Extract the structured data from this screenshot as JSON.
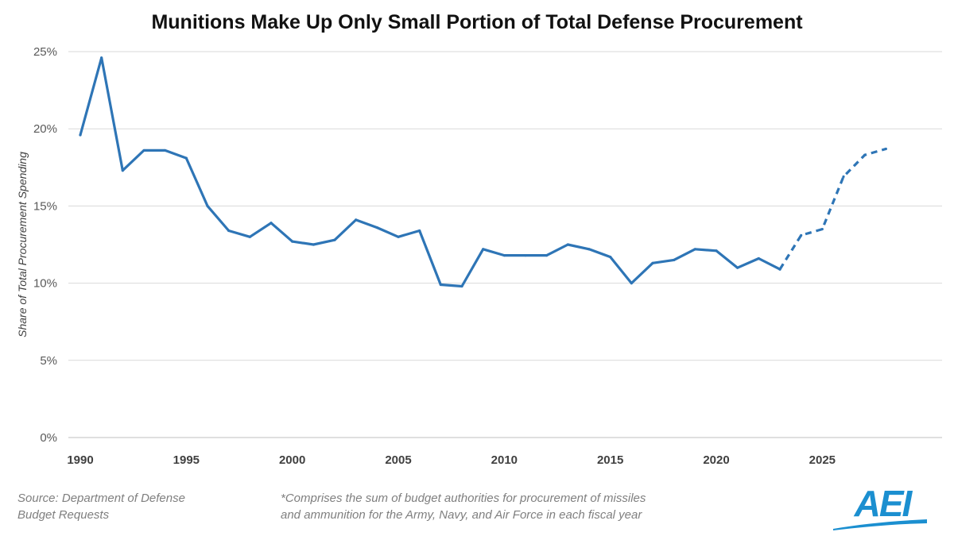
{
  "title": "Munitions Make Up Only Small Portion of Total Defense Procurement",
  "source_line1": "Source: Department of Defense",
  "source_line2": "Budget Requests",
  "footnote_line1": "*Comprises the sum of budget authorities for procurement of missiles",
  "footnote_line2": "and ammunition for the Army, Navy, and Air Force in each fiscal year",
  "logo_text": "AEI",
  "colors": {
    "line": "#2E75B6",
    "grid": "#D9D9D9",
    "logo": "#1B8FD0"
  },
  "chart_data": {
    "type": "line",
    "title": "Munitions Make Up Only Small Portion of Total Defense Procurement",
    "xlabel": "",
    "ylabel": "Share of Total Procurement Spending",
    "xlim": [
      1990,
      2029
    ],
    "ylim": [
      0,
      25
    ],
    "x_ticks": [
      1990,
      1995,
      2000,
      2005,
      2010,
      2015,
      2020,
      2025
    ],
    "y_ticks": [
      0,
      5,
      10,
      15,
      20,
      25
    ],
    "y_tick_labels": [
      "0%",
      "5%",
      "10%",
      "15%",
      "20%",
      "25%"
    ],
    "grid": "horizontal",
    "legend": "none",
    "series": [
      {
        "style": "solid",
        "x": [
          1990,
          1991,
          1992,
          1993,
          1994,
          1995,
          1996,
          1997,
          1998,
          1999,
          2000,
          2001,
          2002,
          2003,
          2004,
          2005,
          2006,
          2007,
          2008,
          2009,
          2010,
          2011,
          2012,
          2013,
          2014,
          2015,
          2016,
          2017,
          2018,
          2019,
          2020,
          2021,
          2022,
          2023
        ],
        "values": [
          19.6,
          24.6,
          17.3,
          18.6,
          18.6,
          18.1,
          15.0,
          13.4,
          13.0,
          13.9,
          12.7,
          12.5,
          12.8,
          14.1,
          13.6,
          13.0,
          13.4,
          9.9,
          9.8,
          12.2,
          11.8,
          11.8,
          11.8,
          12.5,
          12.2,
          11.7,
          10.0,
          11.3,
          11.5,
          12.2,
          12.1,
          11.0,
          11.6,
          10.9
        ]
      },
      {
        "style": "dashed",
        "x": [
          2023,
          2024,
          2025,
          2026,
          2027,
          2028
        ],
        "values": [
          10.9,
          13.1,
          13.5,
          16.9,
          18.3,
          18.7
        ]
      }
    ]
  }
}
